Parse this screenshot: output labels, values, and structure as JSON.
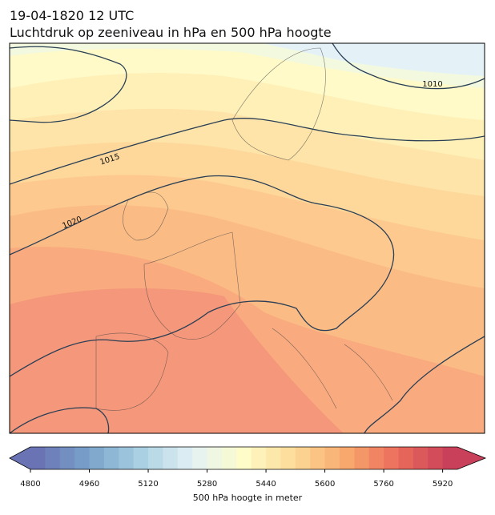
{
  "header": {
    "date": "19-04-1820 12 UTC",
    "title": "Luchtdruk op zeeniveau in hPa en 500 hPa hoogte"
  },
  "map": {
    "isobar_labels": [
      "1010",
      "1015",
      "1020"
    ]
  },
  "colorbar": {
    "label": "500 hPa hoogte in meter",
    "xlim": [
      4800,
      5960
    ],
    "xticks": [
      4800,
      4960,
      5120,
      5280,
      5440,
      5600,
      5760,
      5920
    ]
  }
}
